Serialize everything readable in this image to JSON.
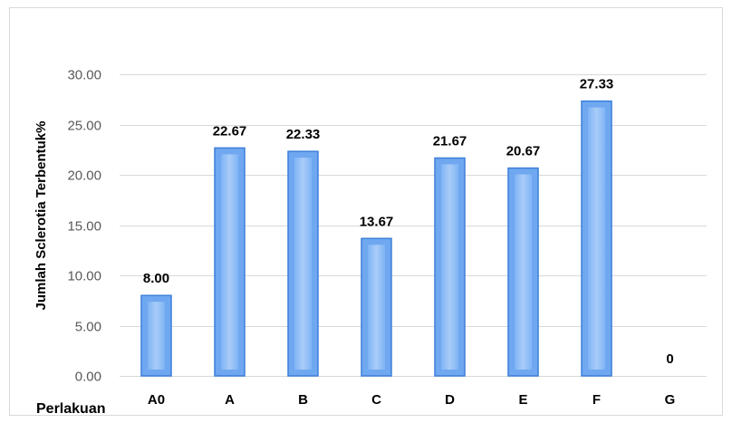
{
  "chart_data": {
    "type": "bar",
    "title": "",
    "xlabel": "Perlakuan",
    "ylabel": "Jumlah Sclerotia Terbentuk%",
    "categories": [
      "A0",
      "A",
      "B",
      "C",
      "D",
      "E",
      "F",
      "G"
    ],
    "values": [
      8.0,
      22.67,
      22.33,
      13.67,
      21.67,
      20.67,
      27.33,
      0
    ],
    "data_labels": [
      "8.00",
      "22.67",
      "22.33",
      "13.67",
      "21.67",
      "20.67",
      "27.33",
      "0"
    ],
    "yticks": [
      "0.00",
      "5.00",
      "10.00",
      "15.00",
      "20.00",
      "25.00",
      "30.00"
    ],
    "ylim": [
      0,
      30
    ],
    "grid": true,
    "legend": "none",
    "bar_color": "#6fa8f0",
    "bar_edge_color": "#3d7fd9"
  }
}
